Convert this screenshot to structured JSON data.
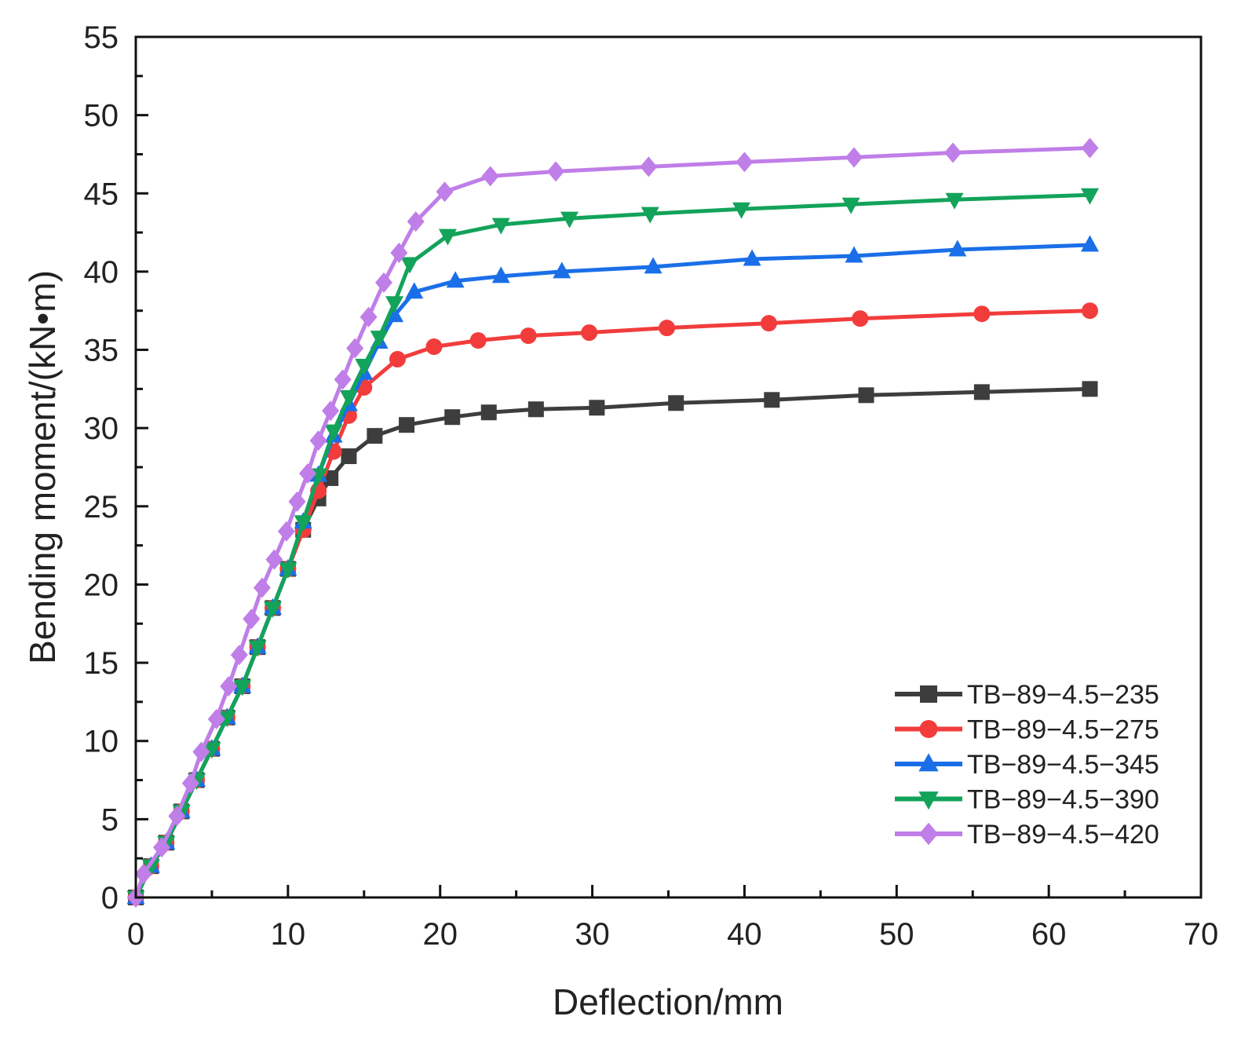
{
  "chart_data": {
    "type": "line",
    "title": "",
    "xlabel": "Deflection/mm",
    "ylabel": "Bending moment/(kN•m)",
    "xlim": [
      0,
      70
    ],
    "ylim": [
      0,
      55
    ],
    "xticks": [
      "0",
      "10",
      "20",
      "30",
      "40",
      "50",
      "60",
      "70"
    ],
    "yticks": [
      "0",
      "5",
      "10",
      "15",
      "20",
      "25",
      "30",
      "35",
      "40",
      "45",
      "50",
      "55"
    ],
    "grid": false,
    "legend_position": "bottom-right",
    "series": [
      {
        "name": "TB−89−4.5−235",
        "color": "#3d3d3d",
        "marker": "square",
        "points": [
          [
            0,
            0
          ],
          [
            1,
            2
          ],
          [
            2,
            3.5
          ],
          [
            3,
            5.5
          ],
          [
            4,
            7.5
          ],
          [
            5,
            9.5
          ],
          [
            6,
            11.5
          ],
          [
            7,
            13.5
          ],
          [
            8,
            16
          ],
          [
            9,
            18.5
          ],
          [
            10,
            21
          ],
          [
            11,
            23.5
          ],
          [
            12,
            25.5
          ],
          [
            12.8,
            26.8
          ],
          [
            14,
            28.2
          ],
          [
            15.7,
            29.5
          ],
          [
            17.8,
            30.2
          ],
          [
            20.8,
            30.7
          ],
          [
            23.2,
            31
          ],
          [
            26.3,
            31.2
          ],
          [
            30.3,
            31.3
          ],
          [
            35.5,
            31.6
          ],
          [
            41.8,
            31.8
          ],
          [
            48,
            32.1
          ],
          [
            55.6,
            32.3
          ],
          [
            62.7,
            32.5
          ]
        ]
      },
      {
        "name": "TB−89−4.5−275",
        "color": "#f23c3c",
        "marker": "circle",
        "points": [
          [
            0,
            0
          ],
          [
            1,
            2
          ],
          [
            2,
            3.5
          ],
          [
            3,
            5.5
          ],
          [
            4,
            7.5
          ],
          [
            5,
            9.5
          ],
          [
            6,
            11.5
          ],
          [
            7,
            13.5
          ],
          [
            8,
            16
          ],
          [
            9,
            18.5
          ],
          [
            10,
            21
          ],
          [
            11,
            23.5
          ],
          [
            12,
            26
          ],
          [
            13,
            28.5
          ],
          [
            14,
            30.8
          ],
          [
            15,
            32.6
          ],
          [
            17.2,
            34.4
          ],
          [
            19.6,
            35.2
          ],
          [
            22.5,
            35.6
          ],
          [
            25.8,
            35.9
          ],
          [
            29.8,
            36.1
          ],
          [
            34.9,
            36.4
          ],
          [
            41.6,
            36.7
          ],
          [
            47.6,
            37
          ],
          [
            55.6,
            37.3
          ],
          [
            62.7,
            37.5
          ]
        ]
      },
      {
        "name": "TB−89−4.5−345",
        "color": "#1a6fe8",
        "marker": "triangle-up",
        "points": [
          [
            0,
            0
          ],
          [
            1,
            2
          ],
          [
            2,
            3.5
          ],
          [
            3,
            5.5
          ],
          [
            4,
            7.5
          ],
          [
            5,
            9.5
          ],
          [
            6,
            11.5
          ],
          [
            7,
            13.5
          ],
          [
            8,
            16
          ],
          [
            9,
            18.5
          ],
          [
            10,
            21
          ],
          [
            11,
            24
          ],
          [
            12,
            27
          ],
          [
            13,
            29.5
          ],
          [
            14,
            31.5
          ],
          [
            15,
            33.5
          ],
          [
            16,
            35.5
          ],
          [
            17,
            37.2
          ],
          [
            18.3,
            38.7
          ],
          [
            21,
            39.4
          ],
          [
            24,
            39.7
          ],
          [
            28,
            40
          ],
          [
            34,
            40.3
          ],
          [
            40.5,
            40.8
          ],
          [
            47.2,
            41
          ],
          [
            54,
            41.4
          ],
          [
            62.7,
            41.7
          ]
        ]
      },
      {
        "name": "TB−89−4.5−390",
        "color": "#13a35a",
        "marker": "triangle-down",
        "points": [
          [
            0,
            0
          ],
          [
            1,
            2
          ],
          [
            2,
            3.5
          ],
          [
            3,
            5.5
          ],
          [
            4,
            7.5
          ],
          [
            5,
            9.5
          ],
          [
            6,
            11.5
          ],
          [
            7,
            13.5
          ],
          [
            8,
            16
          ],
          [
            9,
            18.5
          ],
          [
            10,
            21
          ],
          [
            11,
            24
          ],
          [
            12,
            27
          ],
          [
            13,
            29.8
          ],
          [
            14,
            32
          ],
          [
            15,
            34
          ],
          [
            16,
            35.8
          ],
          [
            17,
            38
          ],
          [
            18,
            40.5
          ],
          [
            20.5,
            42.3
          ],
          [
            24,
            43
          ],
          [
            28.5,
            43.4
          ],
          [
            33.8,
            43.7
          ],
          [
            39.8,
            44
          ],
          [
            47,
            44.3
          ],
          [
            53.8,
            44.6
          ],
          [
            62.7,
            44.9
          ]
        ]
      },
      {
        "name": "TB−89−4.5−420",
        "color": "#c07ee8",
        "marker": "diamond",
        "points": [
          [
            0,
            0
          ],
          [
            0.5,
            1.5
          ],
          [
            1.7,
            3.2
          ],
          [
            2.7,
            5.2
          ],
          [
            3.6,
            7.3
          ],
          [
            4.3,
            9.3
          ],
          [
            5.3,
            11.4
          ],
          [
            6.1,
            13.5
          ],
          [
            6.8,
            15.5
          ],
          [
            7.6,
            17.8
          ],
          [
            8.3,
            19.8
          ],
          [
            9.1,
            21.6
          ],
          [
            9.9,
            23.4
          ],
          [
            10.6,
            25.3
          ],
          [
            11.3,
            27.1
          ],
          [
            12,
            29.2
          ],
          [
            12.8,
            31.1
          ],
          [
            13.6,
            33.1
          ],
          [
            14.4,
            35.1
          ],
          [
            15.3,
            37.1
          ],
          [
            16.3,
            39.3
          ],
          [
            17.3,
            41.2
          ],
          [
            18.4,
            43.2
          ],
          [
            20.3,
            45.1
          ],
          [
            23.3,
            46.1
          ],
          [
            27.6,
            46.4
          ],
          [
            33.7,
            46.7
          ],
          [
            40,
            47
          ],
          [
            47.2,
            47.3
          ],
          [
            53.7,
            47.6
          ],
          [
            62.7,
            47.9
          ]
        ]
      }
    ]
  }
}
